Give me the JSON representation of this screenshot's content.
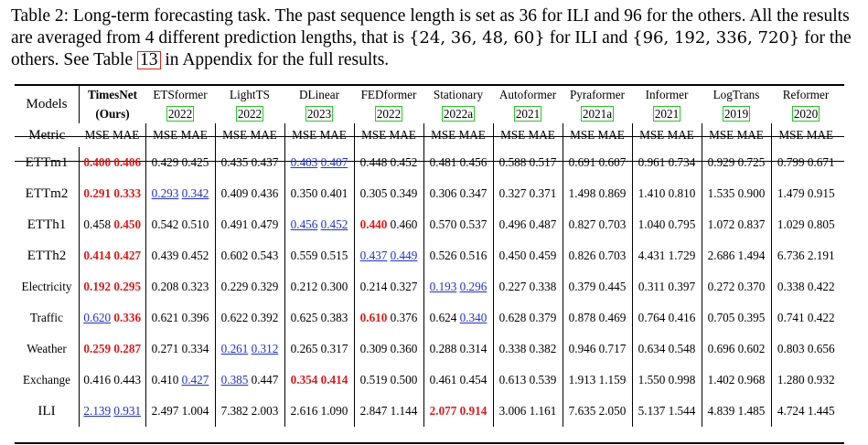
{
  "caption": {
    "lead": "Table 2: Long-term forecasting task. The past sequence length is set as 36 for ILI and 96 for the others. All the results are averaged from 4 different prediction lengths, that is ",
    "set_ili": "{24, 36, 48, 60}",
    "mid": " for ILI and ",
    "set_others": "{96, 192, 336, 720}",
    "tail1": " for the others. See Table ",
    "table_ref": "13",
    "tail2": " in Appendix for the full results."
  },
  "header": {
    "models_label": "Models",
    "metric_label": "Metric",
    "models": [
      {
        "name": "TimesNet",
        "cite": "(Ours)"
      },
      {
        "name": "ETSformer",
        "cite": "2022"
      },
      {
        "name": "LightTS",
        "cite": "2022"
      },
      {
        "name": "DLinear",
        "cite": "2023"
      },
      {
        "name": "FEDformer",
        "cite": "2022"
      },
      {
        "name": "Stationary",
        "cite": "2022a"
      },
      {
        "name": "Autoformer",
        "cite": "2021"
      },
      {
        "name": "Pyraformer",
        "cite": "2021a"
      },
      {
        "name": "Informer",
        "cite": "2021"
      },
      {
        "name": "LogTrans",
        "cite": "2019"
      },
      {
        "name": "Reformer",
        "cite": "2020"
      }
    ],
    "mse": "MSE",
    "mae": "MAE"
  },
  "rows": [
    {
      "dataset": "ETTm1",
      "values": [
        [
          "0.400",
          "0.406"
        ],
        [
          "0.429",
          "0.425"
        ],
        [
          "0.435",
          "0.437"
        ],
        [
          "0.403",
          "0.407"
        ],
        [
          "0.448",
          "0.452"
        ],
        [
          "0.481",
          "0.456"
        ],
        [
          "0.588",
          "0.517"
        ],
        [
          "0.691",
          "0.607"
        ],
        [
          "0.961",
          "0.734"
        ],
        [
          "0.929",
          "0.725"
        ],
        [
          "0.799",
          "0.671"
        ]
      ]
    },
    {
      "dataset": "ETTm2",
      "values": [
        [
          "0.291",
          "0.333"
        ],
        [
          "0.293",
          "0.342"
        ],
        [
          "0.409",
          "0.436"
        ],
        [
          "0.350",
          "0.401"
        ],
        [
          "0.305",
          "0.349"
        ],
        [
          "0.306",
          "0.347"
        ],
        [
          "0.327",
          "0.371"
        ],
        [
          "1.498",
          "0.869"
        ],
        [
          "1.410",
          "0.810"
        ],
        [
          "1.535",
          "0.900"
        ],
        [
          "1.479",
          "0.915"
        ]
      ]
    },
    {
      "dataset": "ETTh1",
      "values": [
        [
          "0.458",
          "0.450"
        ],
        [
          "0.542",
          "0.510"
        ],
        [
          "0.491",
          "0.479"
        ],
        [
          "0.456",
          "0.452"
        ],
        [
          "0.440",
          "0.460"
        ],
        [
          "0.570",
          "0.537"
        ],
        [
          "0.496",
          "0.487"
        ],
        [
          "0.827",
          "0.703"
        ],
        [
          "1.040",
          "0.795"
        ],
        [
          "1.072",
          "0.837"
        ],
        [
          "1.029",
          "0.805"
        ]
      ]
    },
    {
      "dataset": "ETTh2",
      "values": [
        [
          "0.414",
          "0.427"
        ],
        [
          "0.439",
          "0.452"
        ],
        [
          "0.602",
          "0.543"
        ],
        [
          "0.559",
          "0.515"
        ],
        [
          "0.437",
          "0.449"
        ],
        [
          "0.526",
          "0.516"
        ],
        [
          "0.450",
          "0.459"
        ],
        [
          "0.826",
          "0.703"
        ],
        [
          "4.431",
          "1.729"
        ],
        [
          "2.686",
          "1.494"
        ],
        [
          "6.736",
          "2.191"
        ]
      ]
    },
    {
      "dataset": "Electricity",
      "values": [
        [
          "0.192",
          "0.295"
        ],
        [
          "0.208",
          "0.323"
        ],
        [
          "0.229",
          "0.329"
        ],
        [
          "0.212",
          "0.300"
        ],
        [
          "0.214",
          "0.327"
        ],
        [
          "0.193",
          "0.296"
        ],
        [
          "0.227",
          "0.338"
        ],
        [
          "0.379",
          "0.445"
        ],
        [
          "0.311",
          "0.397"
        ],
        [
          "0.272",
          "0.370"
        ],
        [
          "0.338",
          "0.422"
        ]
      ]
    },
    {
      "dataset": "Traffic",
      "values": [
        [
          "0.620",
          "0.336"
        ],
        [
          "0.621",
          "0.396"
        ],
        [
          "0.622",
          "0.392"
        ],
        [
          "0.625",
          "0.383"
        ],
        [
          "0.610",
          "0.376"
        ],
        [
          "0.624",
          "0.340"
        ],
        [
          "0.628",
          "0.379"
        ],
        [
          "0.878",
          "0.469"
        ],
        [
          "0.764",
          "0.416"
        ],
        [
          "0.705",
          "0.395"
        ],
        [
          "0.741",
          "0.422"
        ]
      ]
    },
    {
      "dataset": "Weather",
      "values": [
        [
          "0.259",
          "0.287"
        ],
        [
          "0.271",
          "0.334"
        ],
        [
          "0.261",
          "0.312"
        ],
        [
          "0.265",
          "0.317"
        ],
        [
          "0.309",
          "0.360"
        ],
        [
          "0.288",
          "0.314"
        ],
        [
          "0.338",
          "0.382"
        ],
        [
          "0.946",
          "0.717"
        ],
        [
          "0.634",
          "0.548"
        ],
        [
          "0.696",
          "0.602"
        ],
        [
          "0.803",
          "0.656"
        ]
      ]
    },
    {
      "dataset": "Exchange",
      "values": [
        [
          "0.416",
          "0.443"
        ],
        [
          "0.410",
          "0.427"
        ],
        [
          "0.385",
          "0.447"
        ],
        [
          "0.354",
          "0.414"
        ],
        [
          "0.519",
          "0.500"
        ],
        [
          "0.461",
          "0.454"
        ],
        [
          "0.613",
          "0.539"
        ],
        [
          "1.913",
          "1.159"
        ],
        [
          "1.550",
          "0.998"
        ],
        [
          "1.402",
          "0.968"
        ],
        [
          "1.280",
          "0.932"
        ]
      ]
    },
    {
      "dataset": "ILI",
      "values": [
        [
          "2.139",
          "0.931"
        ],
        [
          "2.497",
          "1.004"
        ],
        [
          "7.382",
          "2.003"
        ],
        [
          "2.616",
          "1.090"
        ],
        [
          "2.847",
          "1.144"
        ],
        [
          "2.077",
          "0.914"
        ],
        [
          "3.006",
          "1.161"
        ],
        [
          "7.635",
          "2.050"
        ],
        [
          "5.137",
          "1.544"
        ],
        [
          "4.839",
          "1.485"
        ],
        [
          "4.724",
          "1.445"
        ]
      ]
    }
  ],
  "highlights": {
    "best": [
      "0-0-0",
      "0-0-1",
      "1-0-0",
      "1-0-1",
      "2-0-1",
      "3-0-0",
      "3-0-1",
      "4-0-0",
      "4-0-1",
      "5-0-1",
      "6-0-0",
      "6-0-1",
      "7-3-0",
      "7-3-1",
      "8-5-0",
      "8-5-1",
      "2-4-0",
      "5-4-0"
    ],
    "second": [
      "0-3-0",
      "0-3-1",
      "1-1-0",
      "1-1-1",
      "2-3-0",
      "2-3-1",
      "3-4-0",
      "3-4-1",
      "4-5-0",
      "4-5-1",
      "5-0-0",
      "5-5-1",
      "6-2-0",
      "6-2-1",
      "7-1-1",
      "7-2-0",
      "8-0-0",
      "8-0-1"
    ]
  },
  "colors": {
    "best": "#e01818",
    "second": "#2030d0",
    "cite_box": "#27c827",
    "ref_box": "#e02020"
  }
}
